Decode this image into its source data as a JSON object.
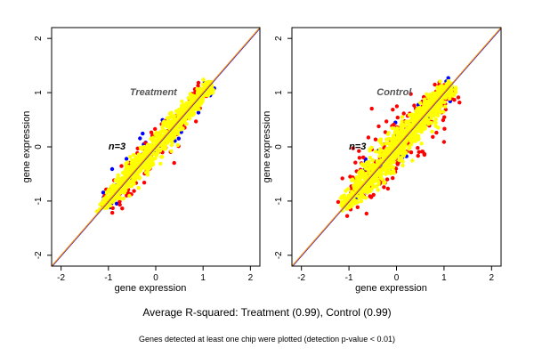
{
  "chart_data": [
    {
      "type": "scatter",
      "title": "Treatment",
      "annotation": "n=3",
      "xlabel": "gene expression",
      "ylabel": "gene expression",
      "xlim": [
        -2.2,
        2.2
      ],
      "ylim": [
        -2.2,
        2.2
      ],
      "xticks": [
        "-2",
        "-1",
        "0",
        "1",
        "2"
      ],
      "yticks": [
        "-2",
        "-1",
        "0",
        "1",
        "2"
      ],
      "grid": false,
      "series": [
        {
          "color": "#0000ff",
          "spread": 0.045,
          "count": 60,
          "range": [
            -1.1,
            1.15
          ]
        },
        {
          "color": "#ff0000",
          "spread": 0.05,
          "count": 140,
          "range": [
            -1.15,
            1.1
          ]
        },
        {
          "color": "#ffff00",
          "spread": 0.03,
          "count": 900,
          "range": [
            -1.1,
            1.15
          ]
        }
      ],
      "reference_lines": [
        {
          "slope": 1,
          "intercept": 0,
          "color": "#0000ff"
        },
        {
          "slope": 1,
          "intercept": 0,
          "color": "#ff8c00"
        }
      ]
    },
    {
      "type": "scatter",
      "title": "Control",
      "annotation": "n=3",
      "xlabel": "gene expression",
      "ylabel": "gene expression",
      "xlim": [
        -2.2,
        2.2
      ],
      "ylim": [
        -2.2,
        2.2
      ],
      "xticks": [
        "-2",
        "-1",
        "0",
        "1",
        "2"
      ],
      "yticks": [
        "-2",
        "-1",
        "0",
        "1",
        "2"
      ],
      "grid": false,
      "series": [
        {
          "color": "#0000ff",
          "spread": 0.055,
          "count": 70,
          "range": [
            -1.1,
            1.15
          ]
        },
        {
          "color": "#ff0000",
          "spread": 0.075,
          "count": 220,
          "range": [
            -1.15,
            1.1
          ]
        },
        {
          "color": "#ffff00",
          "spread": 0.04,
          "count": 1000,
          "range": [
            -1.1,
            1.15
          ]
        }
      ],
      "reference_lines": [
        {
          "slope": 1,
          "intercept": 0,
          "color": "#0000ff"
        },
        {
          "slope": 1,
          "intercept": 0,
          "color": "#ff8c00"
        }
      ]
    }
  ],
  "caption": "Average R-squared: Treatment (0.99), Control (0.99)",
  "footnote": "Genes detected at least one chip were plotted (detection p-value < 0.01)"
}
